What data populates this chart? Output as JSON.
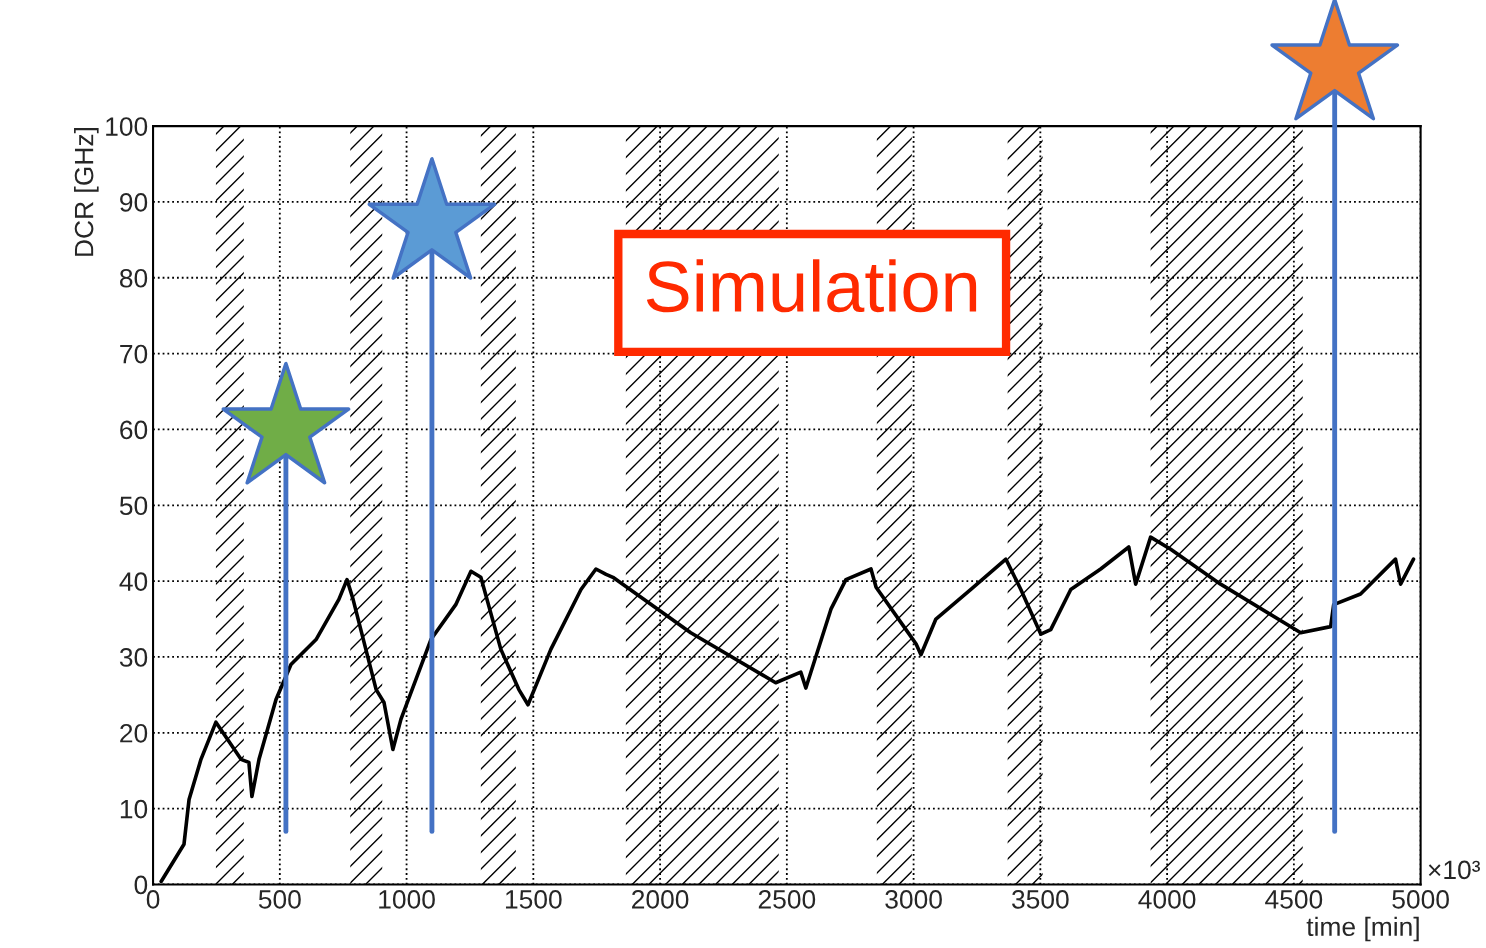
{
  "chart_data": {
    "type": "line",
    "xlabel": "time [min]",
    "ylabel": "DCR [GHz]",
    "x": [
      32,
      122,
      142,
      189,
      248,
      347,
      378,
      390,
      418,
      485,
      544,
      643,
      733,
      765,
      789,
      880,
      911,
      946,
      978,
      1096,
      1194,
      1254,
      1293,
      1372,
      1443,
      1479,
      1569,
      1688,
      1747,
      1787,
      1814,
      2121,
      2456,
      2555,
      2575,
      2674,
      2733,
      2832,
      2852,
      2970,
      3010,
      3029,
      3088,
      3226,
      3364,
      3423,
      3502,
      3541,
      3620,
      3738,
      3849,
      3876,
      3935,
      4014,
      4211,
      4527,
      4645,
      4657,
      4763,
      4901,
      4921,
      4972
    ],
    "series": [
      {
        "color": "#000000",
        "values": [
          0.4,
          5.3,
          11.2,
          16.5,
          21.4,
          16.5,
          16.1,
          11.6,
          16.5,
          24.4,
          29,
          32.3,
          37.6,
          40.2,
          37.6,
          25.7,
          24,
          17.8,
          21.8,
          32.3,
          36.9,
          41.3,
          40.5,
          31,
          25.7,
          23.7,
          31,
          38.9,
          41.6,
          40.9,
          40.5,
          33.2,
          26.6,
          28,
          25.9,
          36.3,
          40.2,
          41.6,
          39.2,
          33.6,
          31.7,
          30.3,
          35,
          38.9,
          42.9,
          38.9,
          33,
          33.6,
          38.9,
          41.6,
          44.5,
          39.6,
          45.8,
          44.2,
          39.6,
          33.2,
          34,
          36.9,
          38.3,
          42.9,
          39.6,
          42.9
        ]
      }
    ],
    "xlim": [
      0,
      5000
    ],
    "xticks": [
      0,
      500,
      1000,
      1500,
      2000,
      2500,
      3000,
      3500,
      4000,
      4500,
      5000
    ],
    "ylim": [
      0,
      100
    ],
    "yticks": [
      0,
      10,
      20,
      30,
      40,
      50,
      60,
      70,
      80,
      90,
      100
    ],
    "grid": true,
    "legend": false,
    "marker": "none",
    "line_style": "solid",
    "bands": [
      {
        "axis": "x",
        "from": 248,
        "to": 358,
        "color": "#000000"
      },
      {
        "axis": "x",
        "from": 778,
        "to": 904,
        "color": "#000000"
      },
      {
        "axis": "x",
        "from": 1293,
        "to": 1431,
        "color": "#000000"
      },
      {
        "axis": "x",
        "from": 1865,
        "to": 2468,
        "color": "#000000"
      },
      {
        "axis": "x",
        "from": 2855,
        "to": 2993,
        "color": "#000000"
      },
      {
        "axis": "x",
        "from": 3371,
        "to": 3509,
        "color": "#000000"
      },
      {
        "axis": "x",
        "from": 3935,
        "to": 4535,
        "color": "#000000"
      }
    ],
    "ref_lines": [
      {
        "axis": "x",
        "value": 524,
        "color": "#4472c4"
      },
      {
        "axis": "x",
        "value": 1100,
        "color": "#4472c4"
      },
      {
        "axis": "x",
        "value": 4661,
        "color": "#4472c4"
      }
    ],
    "annotations": [
      "Simulation",
      "×10³"
    ]
  }
}
